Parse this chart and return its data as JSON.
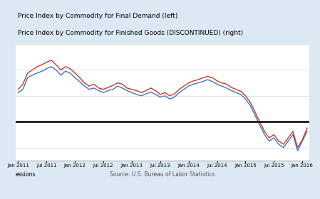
{
  "title_line1": "Price Index by Commodity for Final Demand (left)",
  "title_line2": "Price Index by Commodity for Finished Goods (DISCONTINUED) (right)",
  "source_text": "Source: U.S. Bureau of Labor Statistics",
  "left_label": "essions",
  "bg_color": "#dce9f5",
  "plot_bg_color": "#ffffff",
  "line1_color": "#4472c4",
  "line2_color": "#c0392b",
  "hline_color": "#1a1a1a",
  "x_labels": [
    "Jan 2011",
    "Jul 2011",
    "Jan 2012",
    "Jul 2012",
    "Jan 2013",
    "Jul 2013",
    "Jan 2014",
    "Jul 2014",
    "Jan 2015",
    "Jul 2015",
    "Jan 2016"
  ],
  "blue_y": [
    4.5,
    5.0,
    6.8,
    7.2,
    7.5,
    7.8,
    8.2,
    8.5,
    8.0,
    7.2,
    7.8,
    7.5,
    6.8,
    6.2,
    5.5,
    5.0,
    5.2,
    4.8,
    4.5,
    4.8,
    5.0,
    5.5,
    5.2,
    4.8,
    4.5,
    4.2,
    4.0,
    4.3,
    4.6,
    4.2,
    3.8,
    4.0,
    3.5,
    3.8,
    4.5,
    5.0,
    5.5,
    5.8,
    6.0,
    6.2,
    6.5,
    6.2,
    5.8,
    5.5,
    5.2,
    4.8,
    4.5,
    4.2,
    3.5,
    2.5,
    1.0,
    -0.5,
    -2.0,
    -3.0,
    -2.5,
    -3.5,
    -4.0,
    -3.0,
    -2.0,
    -4.5,
    -3.0,
    -1.5
  ],
  "red_y": [
    5.0,
    5.8,
    7.5,
    8.0,
    8.5,
    8.8,
    9.2,
    9.5,
    8.8,
    8.0,
    8.5,
    8.2,
    7.5,
    6.8,
    6.0,
    5.5,
    5.8,
    5.2,
    5.0,
    5.3,
    5.6,
    6.0,
    5.8,
    5.2,
    5.0,
    4.8,
    4.5,
    4.8,
    5.2,
    4.8,
    4.2,
    4.5,
    4.0,
    4.3,
    5.0,
    5.5,
    6.0,
    6.3,
    6.5,
    6.8,
    7.0,
    6.8,
    6.3,
    6.0,
    5.8,
    5.3,
    5.0,
    4.7,
    4.0,
    3.0,
    1.5,
    0.0,
    -1.5,
    -2.5,
    -2.0,
    -3.0,
    -3.5,
    -2.5,
    -1.5,
    -4.0,
    -2.8,
    -1.0
  ],
  "hline_y": 0.0,
  "ylim_min": -6.0,
  "ylim_max": 12.0,
  "n_points": 62
}
